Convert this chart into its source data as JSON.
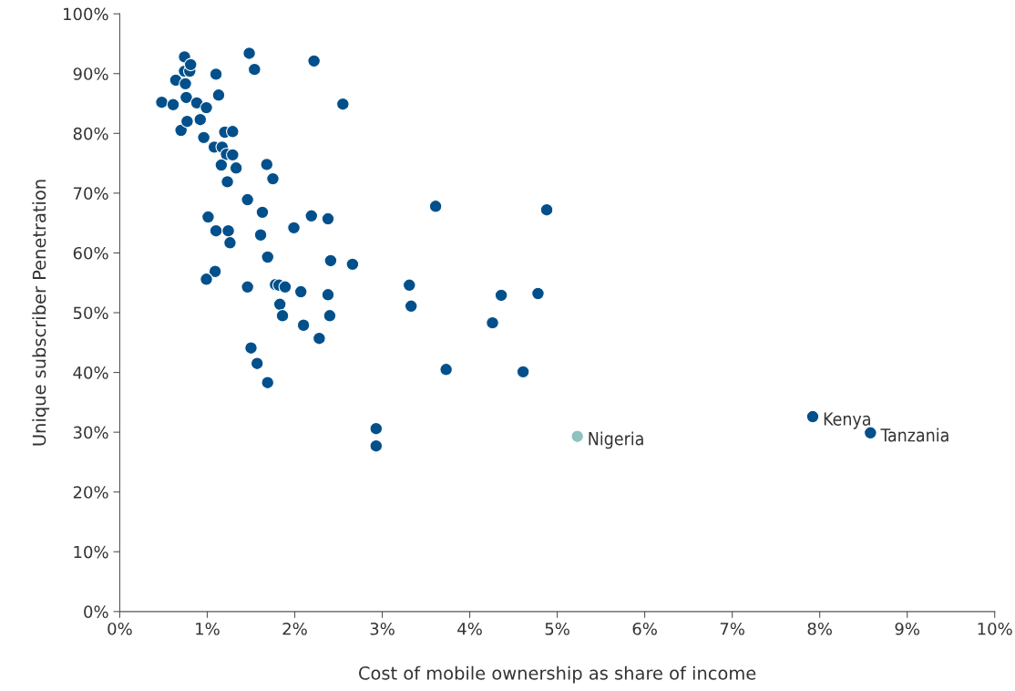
{
  "chart_data": {
    "type": "scatter",
    "xlabel": "Cost of mobile ownership as share of income",
    "ylabel": "Unique subscriber Penetration",
    "xlim": [
      0,
      10
    ],
    "ylim": [
      0,
      100
    ],
    "xticks": [
      {
        "value": 0,
        "label": "0%"
      },
      {
        "value": 1,
        "label": "1%"
      },
      {
        "value": 2,
        "label": "2%"
      },
      {
        "value": 3,
        "label": "3%"
      },
      {
        "value": 4,
        "label": "4%"
      },
      {
        "value": 5,
        "label": "5%"
      },
      {
        "value": 6,
        "label": "6%"
      },
      {
        "value": 7,
        "label": "7%"
      },
      {
        "value": 8,
        "label": "8%"
      },
      {
        "value": 9,
        "label": "9%"
      },
      {
        "value": 10,
        "label": "10%"
      }
    ],
    "yticks": [
      {
        "value": 0,
        "label": "0%"
      },
      {
        "value": 10,
        "label": "10%"
      },
      {
        "value": 20,
        "label": "20%"
      },
      {
        "value": 30,
        "label": "30%"
      },
      {
        "value": 40,
        "label": "40%"
      },
      {
        "value": 50,
        "label": "50%"
      },
      {
        "value": 60,
        "label": "60%"
      },
      {
        "value": 70,
        "label": "70%"
      },
      {
        "value": 80,
        "label": "80%"
      },
      {
        "value": 90,
        "label": "90%"
      },
      {
        "value": 100,
        "label": "100%"
      }
    ],
    "grid": false,
    "marker": "circle",
    "series": [
      {
        "x": [
          0.48,
          0.61,
          0.64,
          0.7,
          0.74,
          0.74,
          0.8,
          0.81,
          0.75,
          0.76,
          0.77,
          0.88,
          0.92,
          0.99,
          0.96,
          1.1,
          1.13,
          1.08,
          1.17,
          1.2,
          1.29,
          1.22,
          1.29,
          1.16,
          1.33,
          1.23,
          1.48,
          1.54,
          2.22,
          2.55,
          1.68,
          1.75,
          1.46,
          1.01,
          1.63,
          1.1,
          1.24,
          1.26,
          1.61,
          1.99,
          2.19,
          2.38,
          1.69,
          2.41,
          2.66,
          1.09,
          0.99,
          1.46,
          1.78,
          1.82,
          1.89,
          2.07,
          2.38,
          1.83,
          1.86,
          2.4,
          2.1,
          2.28,
          1.5,
          1.57,
          1.69,
          2.93,
          2.93,
          3.31,
          3.33,
          3.61,
          3.73,
          4.36,
          4.26,
          4.61,
          4.78,
          4.88,
          5.23,
          7.92,
          8.58
        ],
        "values": [
          85.2,
          84.8,
          88.9,
          80.5,
          92.8,
          90.4,
          90.4,
          91.5,
          88.3,
          86.0,
          82.0,
          85.1,
          82.3,
          84.3,
          79.3,
          89.9,
          86.4,
          77.7,
          77.7,
          80.2,
          80.3,
          76.5,
          76.4,
          74.7,
          74.2,
          71.9,
          93.4,
          90.7,
          92.1,
          84.9,
          74.8,
          72.4,
          68.9,
          66.0,
          66.8,
          63.7,
          63.7,
          61.7,
          63.0,
          64.2,
          66.2,
          65.7,
          59.3,
          58.7,
          58.1,
          56.9,
          55.6,
          54.3,
          54.7,
          54.6,
          54.3,
          53.5,
          53.0,
          51.4,
          49.5,
          49.5,
          47.9,
          45.7,
          44.1,
          41.5,
          38.3,
          30.6,
          27.7,
          54.6,
          51.1,
          67.8,
          40.5,
          52.9,
          48.3,
          40.1,
          53.2,
          67.2,
          29.3,
          32.6,
          29.9
        ],
        "colors": [
          "#02508b",
          "#02508b",
          "#02508b",
          "#02508b",
          "#02508b",
          "#02508b",
          "#02508b",
          "#02508b",
          "#02508b",
          "#02508b",
          "#02508b",
          "#02508b",
          "#02508b",
          "#02508b",
          "#02508b",
          "#02508b",
          "#02508b",
          "#02508b",
          "#02508b",
          "#02508b",
          "#02508b",
          "#02508b",
          "#02508b",
          "#02508b",
          "#02508b",
          "#02508b",
          "#02508b",
          "#02508b",
          "#02508b",
          "#02508b",
          "#02508b",
          "#02508b",
          "#02508b",
          "#02508b",
          "#02508b",
          "#02508b",
          "#02508b",
          "#02508b",
          "#02508b",
          "#02508b",
          "#02508b",
          "#02508b",
          "#02508b",
          "#02508b",
          "#02508b",
          "#02508b",
          "#02508b",
          "#02508b",
          "#02508b",
          "#02508b",
          "#02508b",
          "#02508b",
          "#02508b",
          "#02508b",
          "#02508b",
          "#02508b",
          "#02508b",
          "#02508b",
          "#02508b",
          "#02508b",
          "#02508b",
          "#02508b",
          "#02508b",
          "#02508b",
          "#02508b",
          "#02508b",
          "#02508b",
          "#02508b",
          "#02508b",
          "#02508b",
          "#02508b",
          "#02508b",
          "#8fc1c1",
          "#02508b",
          "#02508b"
        ]
      }
    ],
    "annotations": [
      {
        "text": "Nigeria",
        "x": 5.23,
        "y": 29.3
      },
      {
        "text": "Kenya",
        "x": 7.92,
        "y": 32.6
      },
      {
        "text": "Tanzania",
        "x": 8.58,
        "y": 29.9
      }
    ]
  }
}
